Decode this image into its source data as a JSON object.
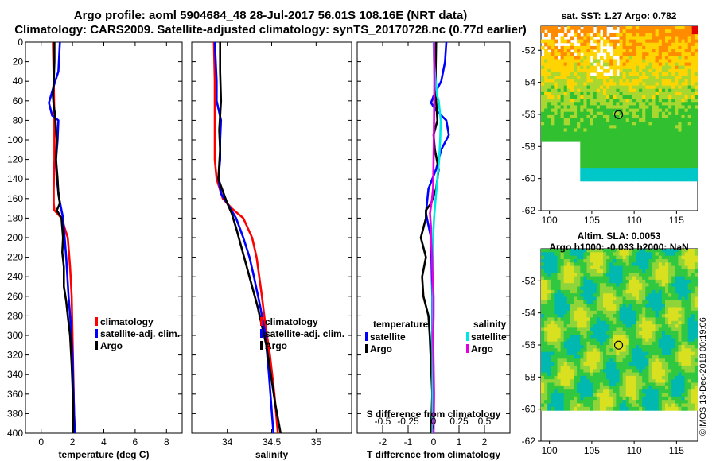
{
  "header": {
    "title_line1": "Argo profile: aoml 5904684_48 28-Jul-2017 56.01S 108.16E (NRT data)",
    "title_line2": "Climatology: CARS2009. Satellite-adjusted climatology: synTS_20170728.nc (0.77d earlier)"
  },
  "chart_data": [
    {
      "type": "line",
      "id": "temperature",
      "xlabel": "temperature (deg C)",
      "ylabel": "",
      "xlim": [
        -1,
        9
      ],
      "ylim": [
        400,
        0
      ],
      "xticks": [
        0,
        2,
        4,
        6,
        8
      ],
      "xtick_labels": [
        "0",
        "2",
        "4",
        "6",
        "8"
      ],
      "yticks": [
        0,
        20,
        40,
        60,
        80,
        100,
        120,
        140,
        160,
        180,
        200,
        220,
        240,
        260,
        280,
        300,
        320,
        340,
        360,
        380,
        400
      ],
      "ytick_labels": [
        "0",
        "20",
        "40",
        "60",
        "80",
        "100",
        "120",
        "140",
        "160",
        "180",
        "200",
        "220",
        "240",
        "260",
        "280",
        "300",
        "320",
        "340",
        "360",
        "380",
        "400"
      ],
      "legend": [
        "climatology",
        "satellite-adj. clim.",
        "Argo"
      ],
      "series": [
        {
          "name": "climatology",
          "color": "#ff0000",
          "x": [
            0.75,
            0.8,
            0.85,
            0.85,
            0.8,
            0.8,
            0.85,
            1.3,
            1.7,
            1.85,
            1.95,
            2.0,
            2.05,
            2.1,
            2.15
          ],
          "y": [
            0,
            40,
            80,
            120,
            150,
            165,
            172,
            180,
            200,
            230,
            260,
            300,
            340,
            380,
            400
          ]
        },
        {
          "name": "satellite-adj. clim.",
          "color": "#0000ff",
          "x": [
            1.2,
            1.1,
            0.8,
            0.5,
            0.7,
            1.1,
            1.05,
            0.95,
            1.0,
            1.15,
            1.4,
            1.6,
            1.75,
            1.9,
            2.0,
            2.05,
            2.1,
            2.15
          ],
          "y": [
            0,
            30,
            45,
            62,
            75,
            80,
            100,
            120,
            140,
            160,
            180,
            220,
            260,
            290,
            320,
            350,
            380,
            400
          ]
        },
        {
          "name": "Argo",
          "color": "#000000",
          "x": [
            0.85,
            0.85,
            0.8,
            0.75,
            0.8,
            0.9,
            0.95,
            1.0,
            0.95,
            1.05,
            1.1,
            1.2,
            1.0,
            1.3,
            1.4,
            1.35,
            1.45,
            1.45,
            1.6,
            1.7,
            1.85,
            1.95,
            2.0,
            2.05,
            2.05
          ],
          "y": [
            0,
            20,
            40,
            55,
            65,
            75,
            90,
            100,
            120,
            140,
            155,
            165,
            172,
            180,
            200,
            215,
            230,
            250,
            265,
            280,
            300,
            330,
            350,
            380,
            400
          ]
        }
      ]
    },
    {
      "type": "line",
      "id": "salinity",
      "xlabel": "salinity",
      "ylabel": "",
      "xlim": [
        33.6,
        35.4
      ],
      "ylim": [
        400,
        0
      ],
      "xticks": [
        34,
        34.5,
        35
      ],
      "xtick_labels": [
        "34",
        "34.5",
        "35"
      ],
      "legend": [
        "climatology",
        "satellite-adj. clim.",
        "Argo"
      ],
      "series": [
        {
          "name": "climatology",
          "color": "#ff0000",
          "x": [
            33.85,
            33.86,
            33.86,
            33.86,
            33.88,
            33.95,
            34.05,
            34.18,
            34.28,
            34.33,
            34.36,
            34.39,
            34.43,
            34.48,
            34.53,
            34.57
          ],
          "y": [
            0,
            40,
            80,
            120,
            140,
            160,
            170,
            180,
            200,
            220,
            240,
            260,
            290,
            320,
            360,
            400
          ]
        },
        {
          "name": "satellite-adj. clim.",
          "color": "#0000ff",
          "x": [
            33.86,
            33.88,
            33.88,
            33.93,
            33.92,
            33.92,
            33.9,
            33.93,
            34.0,
            34.1,
            34.18,
            34.25,
            34.3,
            34.37,
            34.43,
            34.47,
            34.52
          ],
          "y": [
            0,
            40,
            60,
            80,
            100,
            120,
            140,
            155,
            165,
            180,
            200,
            220,
            240,
            270,
            300,
            340,
            400
          ]
        },
        {
          "name": "Argo",
          "color": "#000000",
          "x": [
            33.92,
            33.92,
            33.93,
            33.91,
            33.92,
            33.9,
            33.96,
            34.0,
            34.05,
            34.1,
            34.16,
            34.22,
            34.28,
            34.34,
            34.39,
            34.44,
            34.49,
            34.54,
            34.6
          ],
          "y": [
            0,
            30,
            60,
            90,
            110,
            140,
            155,
            165,
            175,
            190,
            210,
            230,
            250,
            270,
            290,
            310,
            340,
            370,
            400
          ]
        }
      ]
    },
    {
      "type": "line",
      "id": "differences",
      "xlabel": "T difference from climatology",
      "xlabel_top": "S difference from climatology",
      "ylabel": "",
      "xlim": [
        -3,
        3
      ],
      "ylim": [
        400,
        0
      ],
      "xticks": [
        -2,
        -1,
        0,
        1,
        2
      ],
      "xtick_labels": [
        "-2",
        "-1",
        "0",
        "1",
        "2"
      ],
      "s_xticks": [
        -0.5,
        -0.25,
        0,
        0.25,
        0.5
      ],
      "s_xtick_labels": [
        "-0.5",
        "-0.25",
        "0",
        "0.25",
        "0.5"
      ],
      "legend_temperature_title": "temperature",
      "legend_salinity_title": "salinity",
      "legend_temperature": [
        "satellite",
        "Argo"
      ],
      "legend_salinity": [
        "satellite",
        "Argo"
      ],
      "series": [
        {
          "name": "T satellite",
          "color": "#0000ff",
          "x": [
            0.5,
            0.45,
            0.3,
            0.0,
            -0.1,
            0.1,
            0.5,
            0.6,
            0.3,
            0.1,
            -0.2,
            -0.3,
            -0.1,
            -0.05,
            -0.05,
            -0.05
          ],
          "y": [
            0,
            20,
            40,
            55,
            62,
            70,
            80,
            95,
            110,
            130,
            150,
            175,
            200,
            260,
            330,
            400
          ]
        },
        {
          "name": "T Argo",
          "color": "#000000",
          "x": [
            0.1,
            0.08,
            0.1,
            0.15,
            0.0,
            0.05,
            0.2,
            0.1,
            -0.1,
            -0.3,
            -0.3,
            -0.5,
            -0.3,
            -0.45,
            -0.4,
            -0.2,
            -0.15,
            -0.1,
            -0.05,
            -0.1
          ],
          "y": [
            0,
            30,
            60,
            80,
            95,
            110,
            130,
            150,
            165,
            172,
            180,
            200,
            220,
            240,
            260,
            280,
            300,
            330,
            360,
            400
          ]
        },
        {
          "name": "S satellite",
          "color": "#00e5e5",
          "x": [
            0.0,
            0.02,
            0.08,
            0.14,
            0.2,
            0.24,
            0.28,
            0.26,
            0.22,
            0.15,
            0.08,
            0.02,
            -0.02,
            -0.04,
            -0.04,
            -0.04
          ],
          "y": [
            0,
            20,
            40,
            55,
            60,
            70,
            80,
            100,
            120,
            140,
            160,
            180,
            200,
            260,
            330,
            400
          ]
        },
        {
          "name": "S Argo",
          "color": "#e000e0",
          "x": [
            0.02,
            0.03,
            0.02,
            0.0,
            -0.02,
            -0.06,
            -0.14,
            -0.1,
            -0.1,
            -0.06,
            -0.04,
            0.0,
            0.0,
            -0.02,
            0.0,
            0.02,
            0.0
          ],
          "y": [
            0,
            40,
            80,
            120,
            150,
            160,
            175,
            190,
            200,
            220,
            240,
            260,
            280,
            300,
            330,
            360,
            400
          ]
        }
      ]
    },
    {
      "type": "heatmap",
      "id": "sst_map",
      "title": "sat. SST: 1.27 Argo: 0.782",
      "xlim": [
        99,
        117.5
      ],
      "ylim": [
        -62,
        -50.5
      ],
      "xticks": [
        100,
        105,
        110,
        115
      ],
      "yticks": [
        -52,
        -54,
        -56,
        -58,
        -60,
        -62
      ],
      "xtick_labels": [
        "100",
        "105",
        "110",
        "115"
      ],
      "ytick_labels": [
        "-52",
        "-54",
        "-56",
        "-58",
        "-60",
        "-62"
      ],
      "marker": {
        "lon": 108.16,
        "lat": -56.01
      },
      "colors": {
        "warm": "#ff8c00",
        "mid": "#ffd400",
        "cool": "#30c030",
        "cold": "#00c8c8"
      }
    },
    {
      "type": "heatmap",
      "id": "sla_map",
      "title": "Altim. SLA: 0.0053",
      "subtitle": "Argo h1000: -0.033 h2000: NaN",
      "xlim": [
        99,
        117.5
      ],
      "ylim": [
        -62,
        -50
      ],
      "xticks": [
        100,
        105,
        110,
        115
      ],
      "yticks": [
        -52,
        -54,
        -56,
        -58,
        -60,
        -62
      ],
      "xtick_labels": [
        "100",
        "105",
        "110",
        "115"
      ],
      "ytick_labels": [
        "-52",
        "-54",
        "-56",
        "-58",
        "-60",
        "-62"
      ],
      "marker": {
        "lon": 108.16,
        "lat": -56.01
      },
      "colors": {
        "low": "#00b8b0",
        "mid": "#30c840",
        "high": "#d8e020"
      }
    }
  ],
  "footer": {
    "credit": "©IMOS 13-Dec-2018 00:19:06"
  }
}
